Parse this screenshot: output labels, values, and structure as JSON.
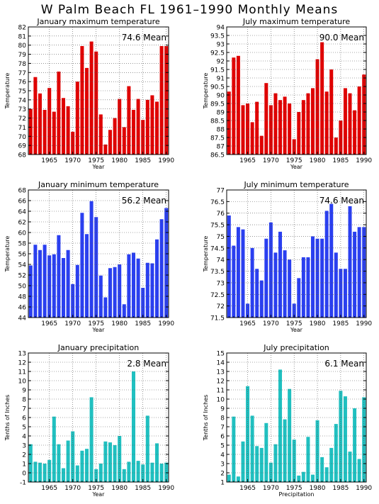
{
  "page_title": "W Palm Beach FL   1961–1990 Monthly Means",
  "chart_data": [
    {
      "type": "bar",
      "title": "January maximum temperature",
      "xlabel": "Year",
      "ylabel": "Temperature",
      "annotation": "74.6 Mean",
      "color": "#e00000",
      "xlim": [
        1960.5,
        1990.5
      ],
      "ylim": [
        68,
        82
      ],
      "yticks": [
        68,
        69,
        70,
        71,
        72,
        73,
        74,
        75,
        76,
        77,
        78,
        79,
        80,
        81,
        82
      ],
      "xticks": [
        1965,
        1970,
        1975,
        1980,
        1985,
        1990
      ],
      "x": [
        1961,
        1962,
        1963,
        1964,
        1965,
        1966,
        1967,
        1968,
        1969,
        1970,
        1971,
        1972,
        1973,
        1974,
        1975,
        1976,
        1977,
        1978,
        1979,
        1980,
        1981,
        1982,
        1983,
        1984,
        1985,
        1986,
        1987,
        1988,
        1989,
        1990
      ],
      "values": [
        73.0,
        76.5,
        74.7,
        72.9,
        75.3,
        72.7,
        77.1,
        74.2,
        73.3,
        70.5,
        76.0,
        79.9,
        77.5,
        80.4,
        79.3,
        72.4,
        69.1,
        70.7,
        72.0,
        74.1,
        71.0,
        75.5,
        72.9,
        74.1,
        71.8,
        74.0,
        74.5,
        73.8,
        79.9,
        79.9
      ]
    },
    {
      "type": "bar",
      "title": "July maximum temperature",
      "xlabel": "Year",
      "ylabel": "Temperature",
      "annotation": "90.0 Mean",
      "color": "#e00000",
      "xlim": [
        1960.5,
        1990.5
      ],
      "ylim": [
        86.5,
        94
      ],
      "yticks": [
        86.5,
        87,
        87.5,
        88,
        88.5,
        89,
        89.5,
        90,
        90.5,
        91,
        91.5,
        92,
        92.5,
        93,
        93.5,
        94
      ],
      "xticks": [
        1965,
        1970,
        1975,
        1980,
        1985,
        1990
      ],
      "x": [
        1961,
        1962,
        1963,
        1964,
        1965,
        1966,
        1967,
        1968,
        1969,
        1970,
        1971,
        1972,
        1973,
        1974,
        1975,
        1976,
        1977,
        1978,
        1979,
        1980,
        1981,
        1982,
        1983,
        1984,
        1985,
        1986,
        1987,
        1988,
        1989,
        1990
      ],
      "values": [
        90.2,
        92.2,
        92.3,
        89.4,
        89.5,
        88.4,
        89.6,
        87.6,
        90.7,
        89.4,
        90.1,
        89.7,
        89.9,
        89.5,
        87.4,
        89.0,
        89.7,
        90.1,
        90.4,
        92.1,
        93.1,
        90.2,
        91.5,
        87.5,
        88.5,
        90.4,
        90.1,
        89.1,
        90.5,
        91.2
      ]
    },
    {
      "type": "bar",
      "title": "January minimum temperature",
      "xlabel": "Year",
      "ylabel": "Temperature",
      "annotation": "56.2 Mean",
      "color": "#2a3ff0",
      "xlim": [
        1960.5,
        1990.5
      ],
      "ylim": [
        44,
        68
      ],
      "yticks": [
        44,
        46,
        48,
        50,
        52,
        54,
        56,
        58,
        60,
        62,
        64,
        66,
        68
      ],
      "xticks": [
        1965,
        1970,
        1975,
        1980,
        1985,
        1990
      ],
      "x": [
        1961,
        1962,
        1963,
        1964,
        1965,
        1966,
        1967,
        1968,
        1969,
        1970,
        1971,
        1972,
        1973,
        1974,
        1975,
        1976,
        1977,
        1978,
        1979,
        1980,
        1981,
        1982,
        1983,
        1984,
        1985,
        1986,
        1987,
        1988,
        1989,
        1990
      ],
      "values": [
        53.8,
        57.7,
        56.7,
        57.7,
        55.7,
        55.9,
        59.5,
        55.2,
        56.7,
        50.3,
        53.9,
        63.7,
        59.7,
        65.9,
        62.9,
        51.9,
        47.8,
        53.3,
        53.5,
        54.0,
        46.5,
        55.9,
        56.2,
        55.1,
        49.6,
        54.3,
        54.2,
        58.7,
        62.5,
        64.6
      ]
    },
    {
      "type": "bar",
      "title": "July minimum temperature",
      "xlabel": "Year",
      "ylabel": "Temperature",
      "annotation": "74.6 Mean",
      "color": "#2a3ff0",
      "xlim": [
        1960.5,
        1990.5
      ],
      "ylim": [
        71.5,
        77
      ],
      "yticks": [
        71.5,
        72,
        72.5,
        73,
        73.5,
        74,
        74.5,
        75,
        75.5,
        76,
        76.5,
        77
      ],
      "xticks": [
        1965,
        1970,
        1975,
        1980,
        1985,
        1990
      ],
      "x": [
        1961,
        1962,
        1963,
        1964,
        1965,
        1966,
        1967,
        1968,
        1969,
        1970,
        1971,
        1972,
        1973,
        1974,
        1975,
        1976,
        1977,
        1978,
        1979,
        1980,
        1981,
        1982,
        1983,
        1984,
        1985,
        1986,
        1987,
        1988,
        1989,
        1990
      ],
      "values": [
        75.9,
        74.6,
        75.4,
        75.3,
        72.1,
        74.5,
        73.6,
        73.1,
        74.9,
        75.6,
        74.3,
        75.2,
        74.4,
        74.0,
        72.1,
        73.2,
        74.1,
        74.1,
        75.0,
        74.9,
        74.9,
        76.1,
        76.4,
        74.3,
        73.6,
        73.6,
        76.3,
        75.2,
        75.4,
        75.4
      ]
    },
    {
      "type": "bar",
      "title": "January precipitation",
      "xlabel": "Year",
      "ylabel": "Tenths of Inches",
      "annotation": "2.8 Mean",
      "color": "#20c0c0",
      "xlim": [
        1960.5,
        1990.5
      ],
      "ylim": [
        -1,
        13
      ],
      "yticks": [
        -1,
        0,
        1,
        2,
        3,
        4,
        5,
        6,
        7,
        8,
        9,
        10,
        11,
        12,
        13
      ],
      "xticks": [
        1965,
        1970,
        1975,
        1980,
        1985,
        1990
      ],
      "x": [
        1961,
        1962,
        1963,
        1964,
        1965,
        1966,
        1967,
        1968,
        1969,
        1970,
        1971,
        1972,
        1973,
        1974,
        1975,
        1976,
        1977,
        1978,
        1979,
        1980,
        1981,
        1982,
        1983,
        1984,
        1985,
        1986,
        1987,
        1988,
        1989,
        1990
      ],
      "values": [
        3.1,
        1.2,
        1.1,
        1.0,
        1.4,
        6.1,
        3.1,
        0.5,
        3.5,
        4.5,
        0.8,
        2.4,
        2.6,
        8.2,
        0.4,
        1.0,
        3.4,
        3.3,
        3.0,
        4.0,
        0.4,
        1.2,
        11.0,
        1.3,
        0.9,
        6.2,
        1.1,
        3.2,
        1.0,
        1.1
      ]
    },
    {
      "type": "bar",
      "title": "July precipitation",
      "xlabel": "Precipitation",
      "ylabel": "Tenths of Inches",
      "annotation": "6.1 Mean",
      "color": "#20c0c0",
      "xlim": [
        1960.5,
        1990.5
      ],
      "ylim": [
        1,
        15
      ],
      "yticks": [
        1,
        2,
        3,
        4,
        5,
        6,
        7,
        8,
        9,
        10,
        11,
        12,
        13,
        14,
        15
      ],
      "xticks": [
        1965,
        1970,
        1975,
        1980,
        1985,
        1990
      ],
      "x": [
        1961,
        1962,
        1963,
        1964,
        1965,
        1966,
        1967,
        1968,
        1969,
        1970,
        1971,
        1972,
        1973,
        1974,
        1975,
        1976,
        1977,
        1978,
        1979,
        1980,
        1981,
        1982,
        1983,
        1984,
        1985,
        1986,
        1987,
        1988,
        1989,
        1990
      ],
      "values": [
        1.8,
        8.1,
        1.6,
        5.4,
        11.4,
        8.2,
        4.9,
        4.7,
        7.4,
        3.1,
        5.1,
        13.2,
        7.8,
        11.1,
        5.6,
        1.7,
        2.1,
        5.9,
        1.8,
        7.7,
        3.7,
        2.6,
        4.7,
        7.3,
        10.9,
        10.3,
        4.3,
        9.0,
        3.5,
        10.2
      ]
    }
  ]
}
